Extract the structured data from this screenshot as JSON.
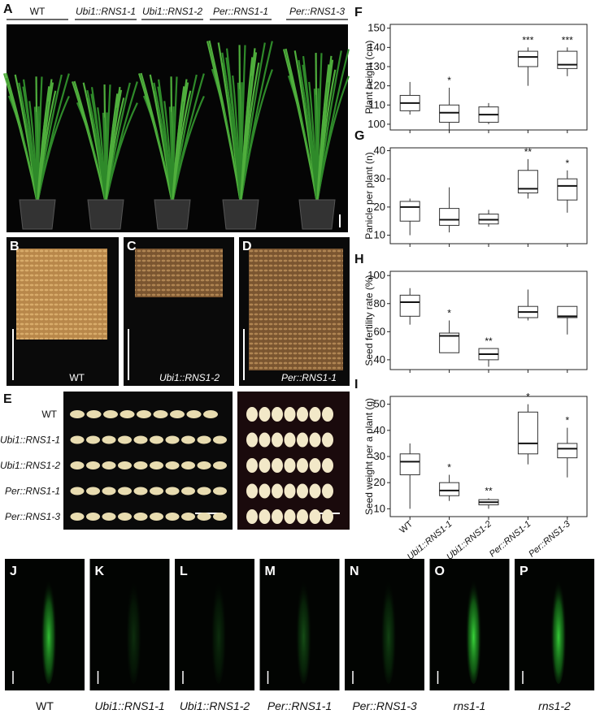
{
  "panels": {
    "a": {
      "label": "A",
      "genotypes": [
        "WT",
        "Ubi1::RNS1-1",
        "Ubi1::RNS1-2",
        "Per::RNS1-1",
        "Per::RNS1-3"
      ]
    },
    "b": {
      "label": "B",
      "caption": "WT"
    },
    "c": {
      "label": "C",
      "caption": "Ubi1::RNS1-2"
    },
    "d": {
      "label": "D",
      "caption": "Per::RNS1-1"
    },
    "e": {
      "label": "E",
      "rows": [
        "WT",
        "Ubi1::RNS1-1",
        "Ubi1::RNS1-2",
        "Per::RNS1-1",
        "Per::RNS1-3"
      ]
    },
    "roots": [
      {
        "label": "J",
        "caption": "WT"
      },
      {
        "label": "K",
        "caption": "Ubi1::RNS1-1"
      },
      {
        "label": "L",
        "caption": "Ubi1::RNS1-2"
      },
      {
        "label": "M",
        "caption": "Per::RNS1-1"
      },
      {
        "label": "N",
        "caption": "Per::RNS1-3"
      },
      {
        "label": "O",
        "caption": "rns1-1"
      },
      {
        "label": "P",
        "caption": "rns1-2"
      }
    ]
  },
  "chart_data": [
    {
      "type": "box",
      "panel": "F",
      "y_label": "Plant height (cm)",
      "ylim": [
        97,
        152
      ],
      "yticks": [
        100,
        110,
        120,
        130,
        140,
        150
      ],
      "boxes": [
        {
          "whislo": 105,
          "q1": 107,
          "med": 111,
          "q3": 115,
          "whishi": 122
        },
        {
          "whislo": 96,
          "q1": 101,
          "med": 106,
          "q3": 110,
          "whishi": 119
        },
        {
          "whislo": 100,
          "q1": 101,
          "med": 105,
          "q3": 109,
          "whishi": 111
        },
        {
          "whislo": 120,
          "q1": 130,
          "med": 135,
          "q3": 138,
          "whishi": 140
        },
        {
          "whislo": 125,
          "q1": 129,
          "med": 131,
          "q3": 138,
          "whishi": 140
        }
      ],
      "annotations": [
        null,
        "*",
        null,
        "***",
        "***"
      ]
    },
    {
      "type": "box",
      "panel": "G",
      "y_label": "Panicle per plant (n)",
      "ylim": [
        7,
        41
      ],
      "yticks": [
        10,
        20,
        30,
        40
      ],
      "boxes": [
        {
          "whislo": 10,
          "q1": 15,
          "med": 20,
          "q3": 22,
          "whishi": 23
        },
        {
          "whislo": 11,
          "q1": 13.5,
          "med": 15.5,
          "q3": 19.5,
          "whishi": 27
        },
        {
          "whislo": 13,
          "q1": 14,
          "med": 15.5,
          "q3": 17.5,
          "whishi": 19
        },
        {
          "whislo": 23,
          "q1": 25,
          "med": 26.5,
          "q3": 33,
          "whishi": 37
        },
        {
          "whislo": 18,
          "q1": 22.5,
          "med": 27.5,
          "q3": 30,
          "whishi": 33
        }
      ],
      "annotations": [
        null,
        null,
        null,
        "**",
        "*"
      ]
    },
    {
      "type": "box",
      "panel": "H",
      "y_label": "Seed fertility rate (%)",
      "ylim": [
        33,
        103
      ],
      "yticks": [
        40,
        60,
        80,
        100
      ],
      "boxes": [
        {
          "whislo": 65,
          "q1": 71,
          "med": 81,
          "q3": 86,
          "whishi": 91
        },
        {
          "whislo": 45,
          "q1": 45,
          "med": 57,
          "q3": 59,
          "whishi": 68
        },
        {
          "whislo": 35,
          "q1": 40,
          "med": 44,
          "q3": 48,
          "whishi": 48
        },
        {
          "whislo": 68,
          "q1": 70,
          "med": 74,
          "q3": 78,
          "whishi": 90
        },
        {
          "whislo": 58,
          "q1": 70,
          "med": 71,
          "q3": 78,
          "whishi": 78
        }
      ],
      "annotations": [
        null,
        "*",
        "**",
        null,
        null
      ]
    },
    {
      "type": "box",
      "panel": "I",
      "y_label": "Seed weight per a plant (g)",
      "ylim": [
        7,
        53
      ],
      "yticks": [
        10,
        20,
        30,
        40,
        50
      ],
      "categories": [
        "WT",
        "Ubi1::RNS1-1",
        "Ubi1::RNS1-2",
        "Per::RNS1-1",
        "Per::RNS1-3"
      ],
      "boxes": [
        {
          "whislo": 10,
          "q1": 23,
          "med": 28,
          "q3": 31,
          "whishi": 35
        },
        {
          "whislo": 13,
          "q1": 15,
          "med": 17,
          "q3": 20,
          "whishi": 23
        },
        {
          "whislo": 10,
          "q1": 11.5,
          "med": 12.5,
          "q3": 13.5,
          "whishi": 14
        },
        {
          "whislo": 27,
          "q1": 31,
          "med": 35,
          "q3": 47,
          "whishi": 50
        },
        {
          "whislo": 22,
          "q1": 29.5,
          "med": 33,
          "q3": 35,
          "whishi": 41
        }
      ],
      "annotations": [
        null,
        "*",
        "**",
        "*",
        "*"
      ]
    }
  ]
}
